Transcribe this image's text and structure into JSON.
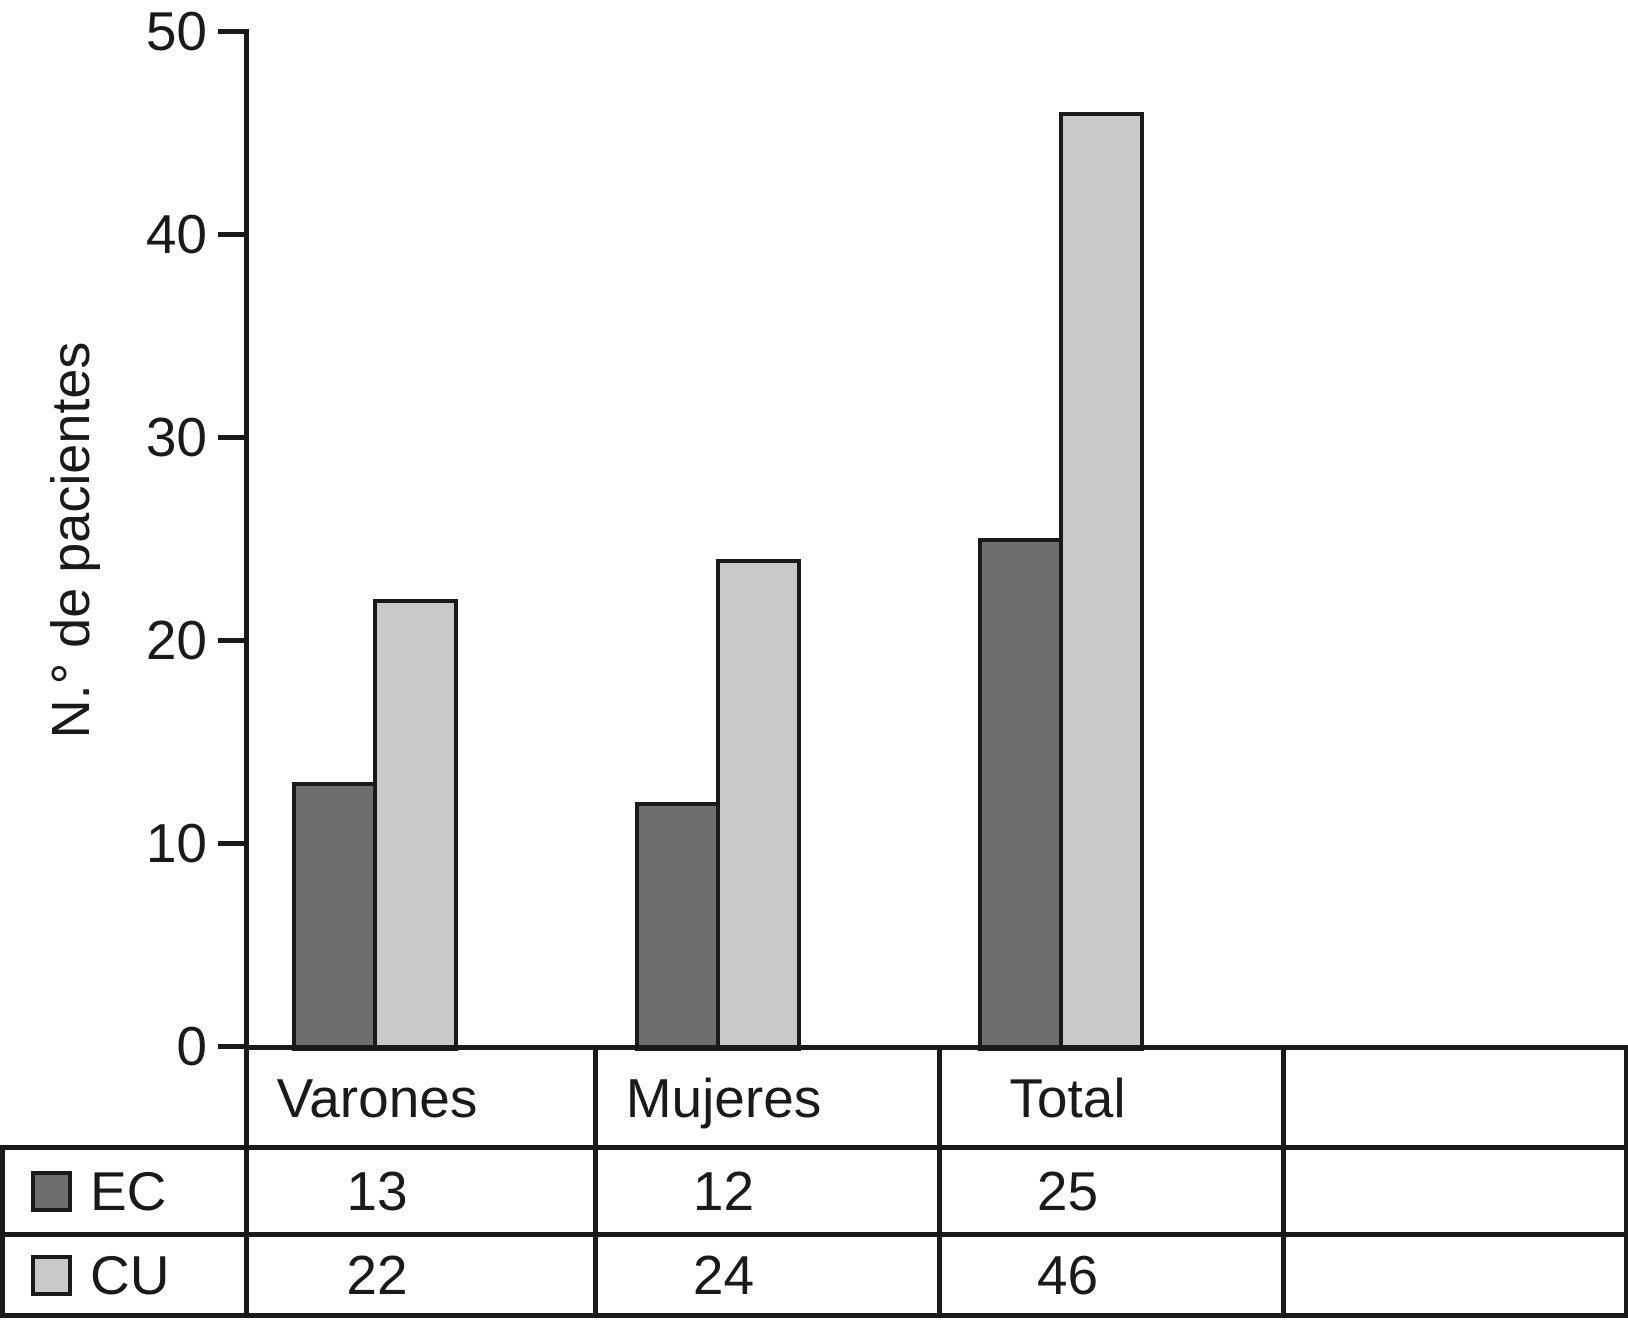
{
  "chart_data": {
    "type": "bar",
    "title": "",
    "xlabel": "",
    "ylabel": "N.° de pacientes",
    "categories": [
      "Varones",
      "Mujeres",
      "Total"
    ],
    "series": [
      {
        "name": "EC",
        "color": "#6e6e6e",
        "values": [
          13,
          12,
          25
        ]
      },
      {
        "name": "CU",
        "color": "#c9c9c9",
        "values": [
          22,
          24,
          46
        ]
      }
    ],
    "ylim": [
      0,
      50
    ],
    "yticks": [
      0,
      10,
      20,
      30,
      40,
      50
    ],
    "grid": false,
    "legend_position": "data-table-left",
    "data_table_shown": true,
    "axis_color": "#1a1a1a"
  }
}
